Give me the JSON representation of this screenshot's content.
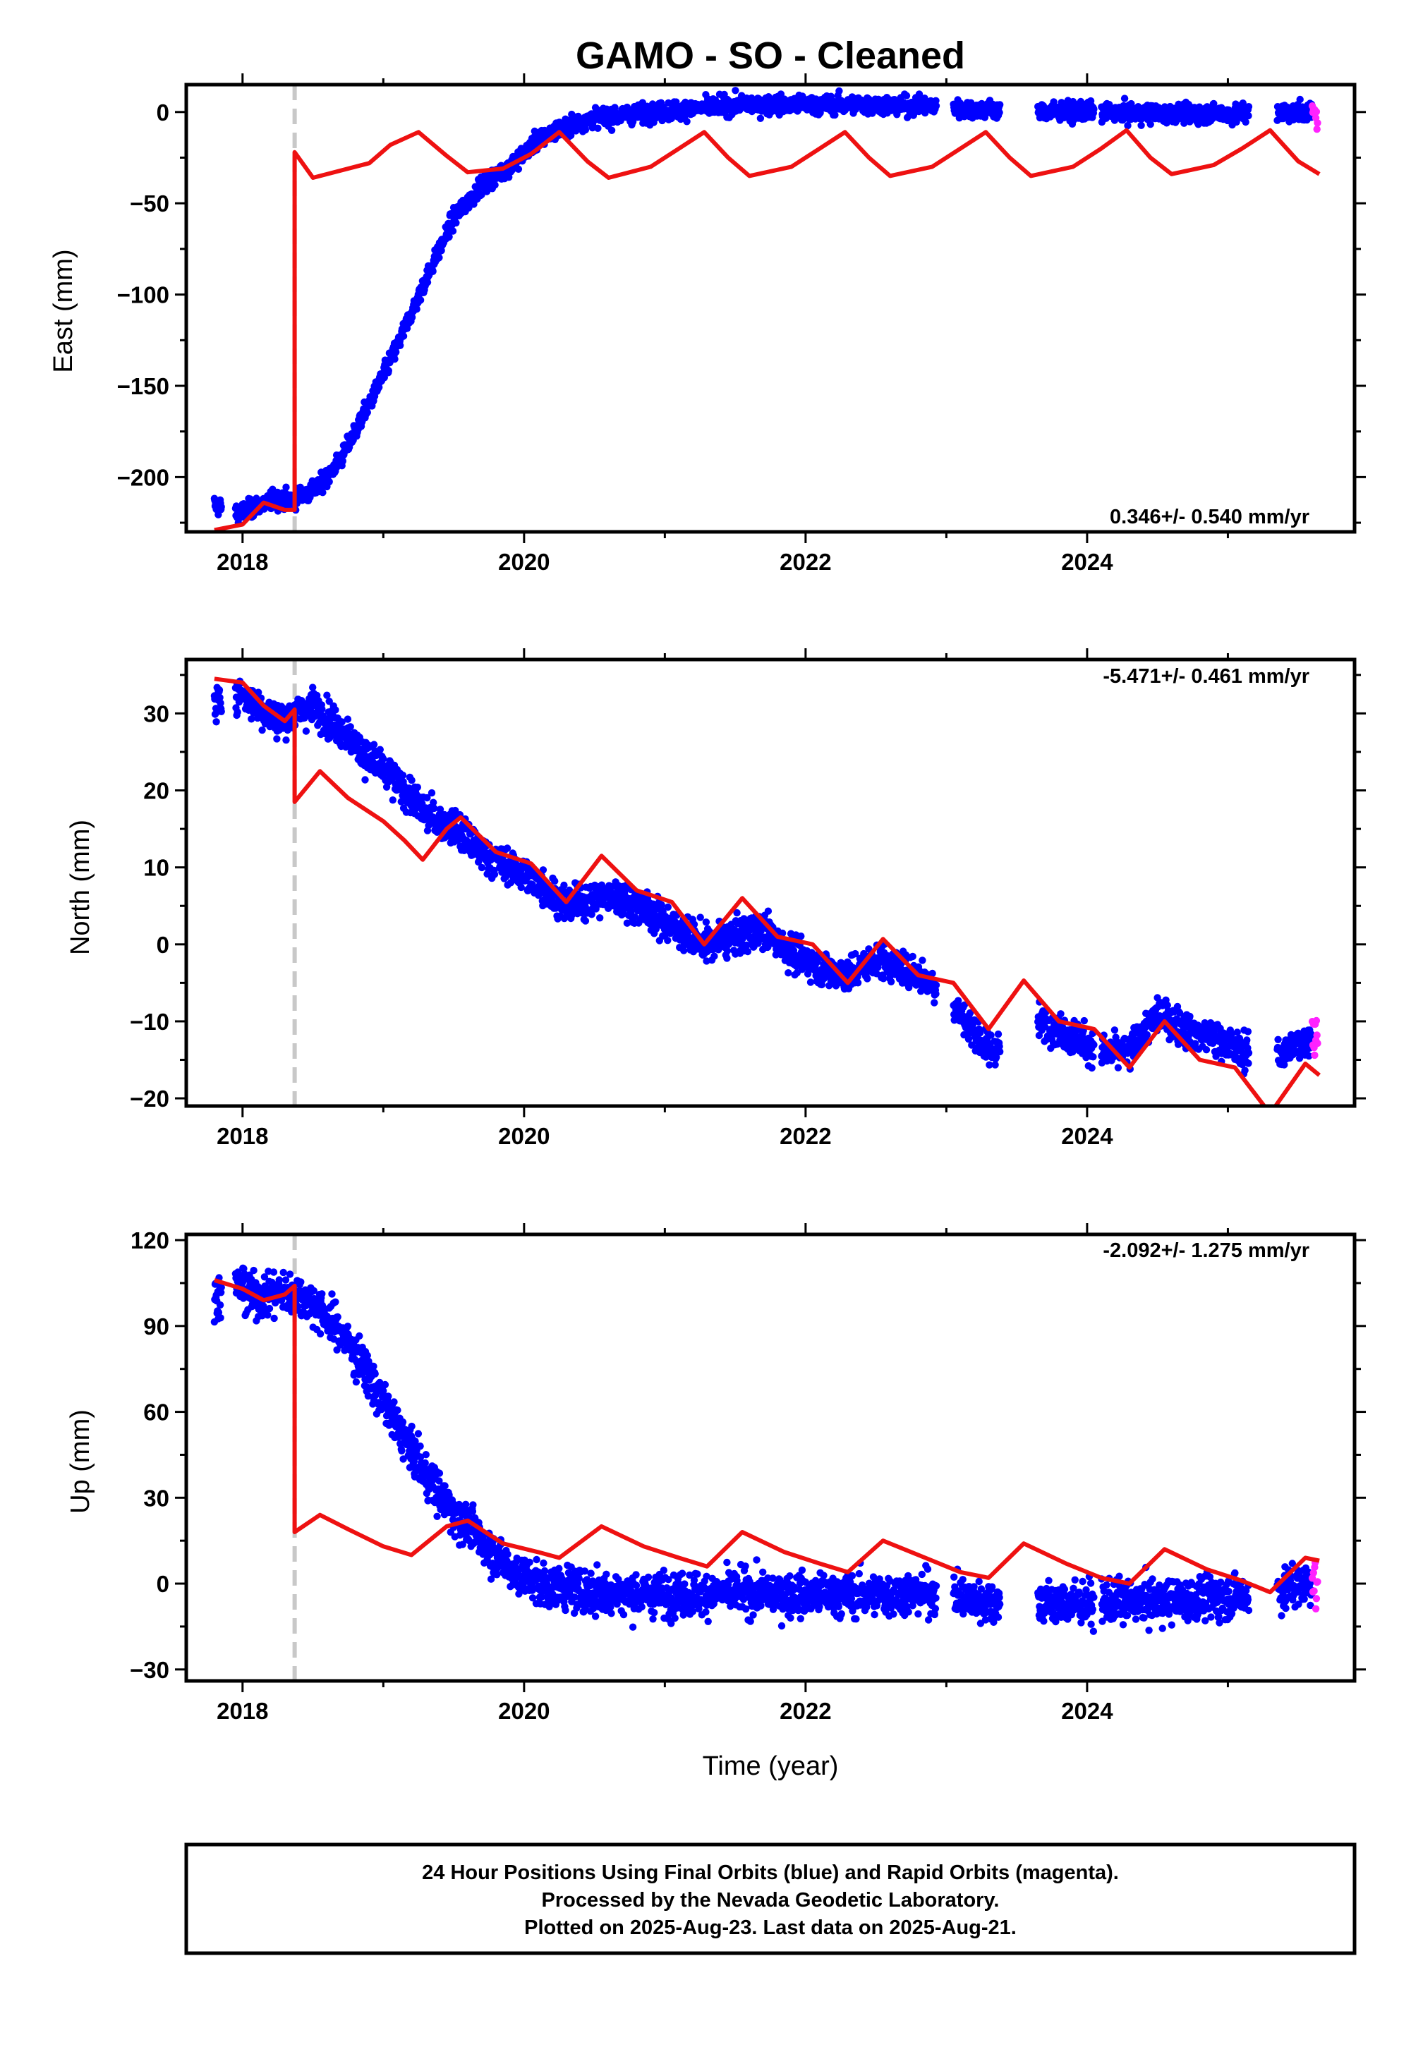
{
  "title": "GAMO  - SO - Cleaned",
  "xlabel": "Time (year)",
  "footer": [
    "24 Hour Positions Using Final Orbits (blue) and Rapid Orbits (magenta).",
    "Processed by the Nevada Geodetic Laboratory.",
    "Plotted on 2025-Aug-23. Last data on 2025-Aug-21."
  ],
  "colors": {
    "final": "#0000ff",
    "rapid": "#ff22ff",
    "model": "#ee1111",
    "event": "#c8c8c8"
  },
  "chart_data": [
    {
      "type": "scatter",
      "ylabel": "East (mm)",
      "rate": "0.346+/- 0.540 mm/yr",
      "xlim": [
        2017.6,
        2025.9
      ],
      "ylim": [
        -230,
        15
      ],
      "xticks": [
        2018,
        2020,
        2022,
        2024
      ],
      "yticks": [
        0,
        -50,
        -100,
        -150,
        -200
      ],
      "event": 2018.37,
      "gaps": [
        [
          2022.93,
          2023.05
        ],
        [
          2023.38,
          2023.65
        ],
        [
          2024.05,
          2024.1
        ],
        [
          2025.15,
          2025.35
        ]
      ],
      "final_series": [
        [
          2017.8,
          -215
        ],
        [
          2017.97,
          -220
        ],
        [
          2018.2,
          -213
        ],
        [
          2018.37,
          -212
        ],
        [
          2018.55,
          -205
        ],
        [
          2018.7,
          -190
        ],
        [
          2018.9,
          -160
        ],
        [
          2019.1,
          -128
        ],
        [
          2019.3,
          -92
        ],
        [
          2019.5,
          -58
        ],
        [
          2019.7,
          -40
        ],
        [
          2019.9,
          -30
        ],
        [
          2020.1,
          -15
        ],
        [
          2020.3,
          -8
        ],
        [
          2020.5,
          -3
        ],
        [
          2020.8,
          -1
        ],
        [
          2021.1,
          1
        ],
        [
          2021.5,
          4
        ],
        [
          2022.0,
          4
        ],
        [
          2022.5,
          4
        ],
        [
          2022.9,
          3
        ],
        [
          2023.3,
          1
        ],
        [
          2023.7,
          0
        ],
        [
          2024.0,
          0
        ],
        [
          2024.5,
          -1
        ],
        [
          2025.0,
          -1
        ],
        [
          2025.6,
          0
        ]
      ],
      "rapid_series": [
        [
          2025.6,
          0
        ],
        [
          2025.64,
          -3
        ]
      ],
      "model": [
        [
          2017.8,
          -229
        ],
        [
          2018.0,
          -226
        ],
        [
          2018.15,
          -214
        ],
        [
          2018.3,
          -218
        ],
        [
          2018.37,
          -218
        ],
        [
          2018.37,
          -22
        ],
        [
          2018.5,
          -36
        ],
        [
          2018.7,
          -32
        ],
        [
          2018.9,
          -28
        ],
        [
          2019.05,
          -18
        ],
        [
          2019.25,
          -11
        ],
        [
          2019.45,
          -24
        ],
        [
          2019.6,
          -33
        ],
        [
          2019.85,
          -31
        ],
        [
          2020.05,
          -23
        ],
        [
          2020.25,
          -11
        ],
        [
          2020.45,
          -27
        ],
        [
          2020.6,
          -36
        ],
        [
          2020.9,
          -30
        ],
        [
          2021.1,
          -20
        ],
        [
          2021.28,
          -11
        ],
        [
          2021.45,
          -25
        ],
        [
          2021.6,
          -35
        ],
        [
          2021.9,
          -30
        ],
        [
          2022.1,
          -20
        ],
        [
          2022.28,
          -11
        ],
        [
          2022.45,
          -25
        ],
        [
          2022.6,
          -35
        ],
        [
          2022.9,
          -30
        ],
        [
          2023.1,
          -20
        ],
        [
          2023.28,
          -11
        ],
        [
          2023.45,
          -25
        ],
        [
          2023.6,
          -35
        ],
        [
          2023.9,
          -30
        ],
        [
          2024.1,
          -20
        ],
        [
          2024.28,
          -10
        ],
        [
          2024.45,
          -25
        ],
        [
          2024.6,
          -34
        ],
        [
          2024.9,
          -29
        ],
        [
          2025.1,
          -20
        ],
        [
          2025.3,
          -10
        ],
        [
          2025.5,
          -27
        ],
        [
          2025.65,
          -34
        ]
      ]
    },
    {
      "type": "scatter",
      "ylabel": "North (mm)",
      "rate": "-5.471+/- 0.461 mm/yr",
      "xlim": [
        2017.6,
        2025.9
      ],
      "ylim": [
        -21,
        37
      ],
      "xticks": [
        2018,
        2020,
        2022,
        2024
      ],
      "yticks": [
        30,
        20,
        10,
        0,
        -10,
        -20
      ],
      "event": 2018.37,
      "gaps": [
        [
          2022.93,
          2023.05
        ],
        [
          2023.38,
          2023.65
        ],
        [
          2024.05,
          2024.1
        ],
        [
          2025.15,
          2025.35
        ]
      ],
      "final_series": [
        [
          2017.8,
          31
        ],
        [
          2017.97,
          33
        ],
        [
          2018.1,
          31
        ],
        [
          2018.25,
          29
        ],
        [
          2018.37,
          30
        ],
        [
          2018.5,
          31
        ],
        [
          2018.7,
          28
        ],
        [
          2018.9,
          24
        ],
        [
          2019.1,
          21
        ],
        [
          2019.3,
          17
        ],
        [
          2019.5,
          15
        ],
        [
          2019.7,
          12
        ],
        [
          2019.9,
          10
        ],
        [
          2020.1,
          8
        ],
        [
          2020.3,
          5
        ],
        [
          2020.5,
          6
        ],
        [
          2020.7,
          6
        ],
        [
          2020.9,
          4
        ],
        [
          2021.1,
          2
        ],
        [
          2021.3,
          0
        ],
        [
          2021.5,
          1
        ],
        [
          2021.7,
          2
        ],
        [
          2021.9,
          -1
        ],
        [
          2022.1,
          -3
        ],
        [
          2022.3,
          -4
        ],
        [
          2022.5,
          -2
        ],
        [
          2022.7,
          -3
        ],
        [
          2022.9,
          -5
        ],
        [
          2023.1,
          -9
        ],
        [
          2023.3,
          -14
        ],
        [
          2023.7,
          -10
        ],
        [
          2023.9,
          -12
        ],
        [
          2024.1,
          -14
        ],
        [
          2024.3,
          -14
        ],
        [
          2024.5,
          -9
        ],
        [
          2024.7,
          -11
        ],
        [
          2024.9,
          -12
        ],
        [
          2025.1,
          -14
        ],
        [
          2025.4,
          -14
        ],
        [
          2025.6,
          -12
        ]
      ],
      "rapid_series": [
        [
          2025.6,
          -11
        ],
        [
          2025.64,
          -13
        ]
      ],
      "model": [
        [
          2017.8,
          34.5
        ],
        [
          2018.0,
          34
        ],
        [
          2018.15,
          31
        ],
        [
          2018.3,
          29
        ],
        [
          2018.37,
          30.5
        ],
        [
          2018.37,
          18.5
        ],
        [
          2018.55,
          22.5
        ],
        [
          2018.75,
          19
        ],
        [
          2019.0,
          16
        ],
        [
          2019.15,
          13.5
        ],
        [
          2019.28,
          11
        ],
        [
          2019.45,
          15
        ],
        [
          2019.55,
          16.5
        ],
        [
          2019.8,
          12
        ],
        [
          2020.05,
          10.5
        ],
        [
          2020.3,
          5.5
        ],
        [
          2020.55,
          11.5
        ],
        [
          2020.8,
          7
        ],
        [
          2021.05,
          5.5
        ],
        [
          2021.28,
          0
        ],
        [
          2021.55,
          6
        ],
        [
          2021.8,
          1
        ],
        [
          2022.05,
          0
        ],
        [
          2022.3,
          -5
        ],
        [
          2022.55,
          0.7
        ],
        [
          2022.8,
          -4
        ],
        [
          2023.05,
          -5
        ],
        [
          2023.3,
          -11
        ],
        [
          2023.55,
          -4.7
        ],
        [
          2023.8,
          -10
        ],
        [
          2024.05,
          -11
        ],
        [
          2024.3,
          -16
        ],
        [
          2024.55,
          -10
        ],
        [
          2024.8,
          -15
        ],
        [
          2025.05,
          -16
        ],
        [
          2025.3,
          -22
        ],
        [
          2025.55,
          -15.5
        ],
        [
          2025.65,
          -17
        ]
      ]
    },
    {
      "type": "scatter",
      "ylabel": "Up (mm)",
      "rate": "-2.092+/- 1.275 mm/yr",
      "xlim": [
        2017.6,
        2025.9
      ],
      "ylim": [
        -34,
        122
      ],
      "xticks": [
        2018,
        2020,
        2022,
        2024
      ],
      "yticks": [
        120,
        90,
        60,
        30,
        0,
        -30
      ],
      "event": 2018.37,
      "gaps": [
        [
          2022.93,
          2023.05
        ],
        [
          2023.38,
          2023.65
        ],
        [
          2024.05,
          2024.1
        ],
        [
          2025.15,
          2025.35
        ]
      ],
      "final_series": [
        [
          2017.8,
          100
        ],
        [
          2017.97,
          104
        ],
        [
          2018.1,
          100
        ],
        [
          2018.25,
          102
        ],
        [
          2018.37,
          101
        ],
        [
          2018.5,
          98
        ],
        [
          2018.7,
          88
        ],
        [
          2018.9,
          72
        ],
        [
          2019.1,
          55
        ],
        [
          2019.3,
          38
        ],
        [
          2019.5,
          25
        ],
        [
          2019.7,
          15
        ],
        [
          2019.9,
          5
        ],
        [
          2020.1,
          0
        ],
        [
          2020.5,
          -3
        ],
        [
          2021.0,
          -4
        ],
        [
          2021.5,
          -3
        ],
        [
          2022.0,
          -4
        ],
        [
          2022.5,
          -4
        ],
        [
          2022.9,
          -3
        ],
        [
          2023.2,
          -6
        ],
        [
          2023.7,
          -7
        ],
        [
          2024.0,
          -7
        ],
        [
          2024.5,
          -6
        ],
        [
          2025.0,
          -5
        ],
        [
          2025.4,
          -2
        ],
        [
          2025.6,
          0
        ]
      ],
      "rapid_series": [
        [
          2025.6,
          2
        ],
        [
          2025.64,
          -2
        ]
      ],
      "model": [
        [
          2017.8,
          106
        ],
        [
          2018.0,
          103
        ],
        [
          2018.15,
          99
        ],
        [
          2018.3,
          101
        ],
        [
          2018.37,
          104
        ],
        [
          2018.37,
          18
        ],
        [
          2018.55,
          24
        ],
        [
          2018.75,
          19
        ],
        [
          2019.0,
          13
        ],
        [
          2019.2,
          10
        ],
        [
          2019.45,
          20
        ],
        [
          2019.6,
          22
        ],
        [
          2019.85,
          14
        ],
        [
          2020.1,
          11
        ],
        [
          2020.25,
          9
        ],
        [
          2020.55,
          20
        ],
        [
          2020.85,
          13
        ],
        [
          2021.1,
          9
        ],
        [
          2021.3,
          6
        ],
        [
          2021.55,
          18
        ],
        [
          2021.85,
          11
        ],
        [
          2022.1,
          7
        ],
        [
          2022.3,
          4
        ],
        [
          2022.55,
          15
        ],
        [
          2022.85,
          9
        ],
        [
          2023.1,
          4
        ],
        [
          2023.3,
          2
        ],
        [
          2023.55,
          14
        ],
        [
          2023.85,
          7
        ],
        [
          2024.1,
          2
        ],
        [
          2024.3,
          0
        ],
        [
          2024.55,
          12
        ],
        [
          2024.85,
          5
        ],
        [
          2025.1,
          1
        ],
        [
          2025.3,
          -3
        ],
        [
          2025.55,
          9
        ],
        [
          2025.65,
          8
        ]
      ]
    }
  ]
}
